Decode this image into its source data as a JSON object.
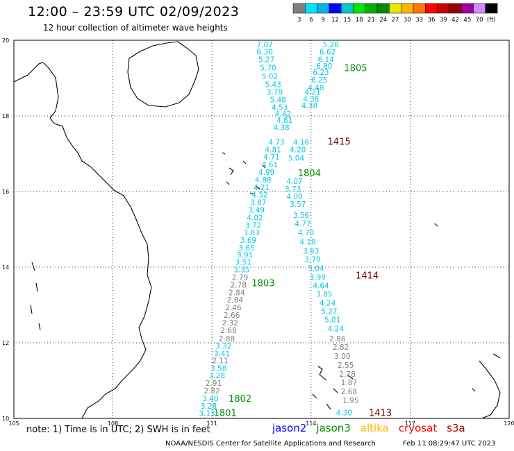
{
  "header": {
    "title": "12:00 – 23:59 UTC 02/09/2023",
    "subtitle": "12 hour collection of altimeter wave heights"
  },
  "colorbar": {
    "labels": [
      "3",
      "6",
      "9",
      "12",
      "15",
      "18",
      "21",
      "24",
      "27",
      "30",
      "33",
      "36",
      "39",
      "42",
      "45",
      "70",
      "(ft)"
    ],
    "colors": [
      "#7f7f7f",
      "#00e5ff",
      "#00b4e6",
      "#0000ff",
      "#00c8c8",
      "#00e600",
      "#00b000",
      "#008c00",
      "#e6e600",
      "#ffb400",
      "#ff7800",
      "#ff0000",
      "#c80000",
      "#960000",
      "#a000a0",
      "#d28cff",
      "#000000"
    ]
  },
  "map": {
    "lon_min": 105,
    "lon_max": 120,
    "lat_min": 10,
    "lat_max": 20,
    "lon_ticks": [
      "105",
      "108",
      "111",
      "114",
      "117",
      "120"
    ],
    "lat_ticks": [
      "20",
      "18",
      "16",
      "14",
      "12",
      "10"
    ]
  },
  "wave_labels": [
    {
      "v": "7.07",
      "lon": 112.6,
      "lat": 19.82,
      "c": "cyan"
    },
    {
      "v": "5.28",
      "lon": 114.6,
      "lat": 19.82,
      "c": "cyan"
    },
    {
      "v": "6.30",
      "lon": 112.6,
      "lat": 19.62,
      "c": "cyan"
    },
    {
      "v": "6.62",
      "lon": 114.5,
      "lat": 19.62,
      "c": "cyan"
    },
    {
      "v": "5.27",
      "lon": 112.65,
      "lat": 19.42,
      "c": "cyan"
    },
    {
      "v": "6.14",
      "lon": 114.45,
      "lat": 19.42,
      "c": "cyan"
    },
    {
      "v": "5.70",
      "lon": 112.7,
      "lat": 19.2,
      "c": "cyan"
    },
    {
      "v": "6.80",
      "lon": 114.4,
      "lat": 19.25,
      "c": "cyan"
    },
    {
      "v": "6.23",
      "lon": 114.3,
      "lat": 19.08,
      "c": "cyan"
    },
    {
      "v": "5.02",
      "lon": 112.75,
      "lat": 18.98,
      "c": "cyan"
    },
    {
      "v": "6.25",
      "lon": 114.25,
      "lat": 18.88,
      "c": "cyan"
    },
    {
      "v": "5.43",
      "lon": 112.85,
      "lat": 18.76,
      "c": "cyan"
    },
    {
      "v": "4.48",
      "lon": 114.15,
      "lat": 18.68,
      "c": "cyan"
    },
    {
      "v": "3.78",
      "lon": 112.9,
      "lat": 18.56,
      "c": "cyan"
    },
    {
      "v": "4.21",
      "lon": 114.05,
      "lat": 18.56,
      "c": "cyan"
    },
    {
      "v": "5.48",
      "lon": 113.0,
      "lat": 18.36,
      "c": "cyan"
    },
    {
      "v": "4.38",
      "lon": 114.0,
      "lat": 18.38,
      "c": "cyan"
    },
    {
      "v": "4.53",
      "lon": 113.05,
      "lat": 18.16,
      "c": "cyan"
    },
    {
      "v": "4.38",
      "lon": 113.95,
      "lat": 18.2,
      "c": "cyan"
    },
    {
      "v": "4.42",
      "lon": 113.15,
      "lat": 17.98,
      "c": "cyan"
    },
    {
      "v": "4.81",
      "lon": 113.2,
      "lat": 17.82,
      "c": "cyan"
    },
    {
      "v": "4.38",
      "lon": 113.1,
      "lat": 17.62,
      "c": "cyan"
    },
    {
      "v": "4.73",
      "lon": 112.95,
      "lat": 17.24,
      "c": "cyan"
    },
    {
      "v": "4.16",
      "lon": 113.7,
      "lat": 17.24,
      "c": "cyan"
    },
    {
      "v": "4.81",
      "lon": 112.85,
      "lat": 17.04,
      "c": "cyan"
    },
    {
      "v": "4.20",
      "lon": 113.6,
      "lat": 17.04,
      "c": "cyan"
    },
    {
      "v": "4.71",
      "lon": 112.8,
      "lat": 16.84,
      "c": "cyan"
    },
    {
      "v": "5.04",
      "lon": 113.55,
      "lat": 16.82,
      "c": "cyan"
    },
    {
      "v": "4.61",
      "lon": 112.75,
      "lat": 16.64,
      "c": "cyan"
    },
    {
      "v": "4.99",
      "lon": 112.65,
      "lat": 16.44,
      "c": "cyan"
    },
    {
      "v": "4.07",
      "lon": 113.5,
      "lat": 16.2,
      "c": "cyan"
    },
    {
      "v": "4.88",
      "lon": 112.55,
      "lat": 16.24,
      "c": "cyan"
    },
    {
      "v": "4.21",
      "lon": 112.5,
      "lat": 16.04,
      "c": "cyan"
    },
    {
      "v": "3.73",
      "lon": 113.45,
      "lat": 16.0,
      "c": "cyan"
    },
    {
      "v": "4.52",
      "lon": 112.45,
      "lat": 15.84,
      "c": "cyan"
    },
    {
      "v": "4.00",
      "lon": 113.5,
      "lat": 15.8,
      "c": "cyan"
    },
    {
      "v": "3.87",
      "lon": 112.4,
      "lat": 15.64,
      "c": "cyan"
    },
    {
      "v": "3.57",
      "lon": 113.6,
      "lat": 15.6,
      "c": "cyan"
    },
    {
      "v": "3.49",
      "lon": 112.35,
      "lat": 15.44,
      "c": "cyan"
    },
    {
      "v": "4.02",
      "lon": 112.3,
      "lat": 15.24,
      "c": "cyan"
    },
    {
      "v": "3.56",
      "lon": 113.7,
      "lat": 15.3,
      "c": "cyan"
    },
    {
      "v": "3.72",
      "lon": 112.25,
      "lat": 15.04,
      "c": "cyan"
    },
    {
      "v": "4.77",
      "lon": 113.75,
      "lat": 15.08,
      "c": "cyan"
    },
    {
      "v": "3.83",
      "lon": 112.2,
      "lat": 14.84,
      "c": "cyan"
    },
    {
      "v": "4.70",
      "lon": 113.85,
      "lat": 14.84,
      "c": "cyan"
    },
    {
      "v": "3.69",
      "lon": 112.1,
      "lat": 14.64,
      "c": "cyan"
    },
    {
      "v": "4.18",
      "lon": 113.9,
      "lat": 14.6,
      "c": "cyan"
    },
    {
      "v": "3.65",
      "lon": 112.05,
      "lat": 14.44,
      "c": "cyan"
    },
    {
      "v": "3.63",
      "lon": 114.0,
      "lat": 14.36,
      "c": "cyan"
    },
    {
      "v": "3.91",
      "lon": 112.0,
      "lat": 14.26,
      "c": "cyan"
    },
    {
      "v": "3.70",
      "lon": 114.05,
      "lat": 14.14,
      "c": "cyan"
    },
    {
      "v": "3.51",
      "lon": 111.95,
      "lat": 14.06,
      "c": "cyan"
    },
    {
      "v": "5.04",
      "lon": 114.15,
      "lat": 13.9,
      "c": "cyan"
    },
    {
      "v": "3.35",
      "lon": 111.9,
      "lat": 13.86,
      "c": "cyan"
    },
    {
      "v": "2.79",
      "lon": 111.85,
      "lat": 13.66,
      "c": "gray"
    },
    {
      "v": "3.99",
      "lon": 114.2,
      "lat": 13.66,
      "c": "cyan"
    },
    {
      "v": "2.78",
      "lon": 111.8,
      "lat": 13.46,
      "c": "gray"
    },
    {
      "v": "4.64",
      "lon": 114.3,
      "lat": 13.44,
      "c": "cyan"
    },
    {
      "v": "2.84",
      "lon": 111.75,
      "lat": 13.26,
      "c": "gray"
    },
    {
      "v": "3.85",
      "lon": 114.4,
      "lat": 13.22,
      "c": "cyan"
    },
    {
      "v": "2.84",
      "lon": 111.7,
      "lat": 13.06,
      "c": "gray"
    },
    {
      "v": "4.24",
      "lon": 114.5,
      "lat": 12.98,
      "c": "cyan"
    },
    {
      "v": "2.46",
      "lon": 111.65,
      "lat": 12.86,
      "c": "gray"
    },
    {
      "v": "5.27",
      "lon": 114.55,
      "lat": 12.76,
      "c": "cyan"
    },
    {
      "v": "2.66",
      "lon": 111.6,
      "lat": 12.66,
      "c": "gray"
    },
    {
      "v": "5.01",
      "lon": 114.65,
      "lat": 12.54,
      "c": "cyan"
    },
    {
      "v": "2.32",
      "lon": 111.55,
      "lat": 12.46,
      "c": "gray"
    },
    {
      "v": "4.24",
      "lon": 114.75,
      "lat": 12.3,
      "c": "cyan"
    },
    {
      "v": "2.68",
      "lon": 111.5,
      "lat": 12.26,
      "c": "gray"
    },
    {
      "v": "2.88",
      "lon": 111.45,
      "lat": 12.04,
      "c": "gray"
    },
    {
      "v": "2.86",
      "lon": 114.8,
      "lat": 12.04,
      "c": "gray"
    },
    {
      "v": "3.32",
      "lon": 111.35,
      "lat": 11.84,
      "c": "cyan"
    },
    {
      "v": "2.82",
      "lon": 114.9,
      "lat": 11.82,
      "c": "gray"
    },
    {
      "v": "3.41",
      "lon": 111.3,
      "lat": 11.64,
      "c": "cyan"
    },
    {
      "v": "3.00",
      "lon": 114.95,
      "lat": 11.58,
      "c": "gray"
    },
    {
      "v": "2.11",
      "lon": 111.25,
      "lat": 11.46,
      "c": "gray"
    },
    {
      "v": "2.55",
      "lon": 115.05,
      "lat": 11.34,
      "c": "gray"
    },
    {
      "v": "3.58",
      "lon": 111.2,
      "lat": 11.26,
      "c": "cyan"
    },
    {
      "v": "2.78",
      "lon": 115.1,
      "lat": 11.1,
      "c": "gray"
    },
    {
      "v": "3.28",
      "lon": 111.15,
      "lat": 11.06,
      "c": "cyan"
    },
    {
      "v": "2.91",
      "lon": 111.05,
      "lat": 10.86,
      "c": "gray"
    },
    {
      "v": "1.87",
      "lon": 115.15,
      "lat": 10.88,
      "c": "gray"
    },
    {
      "v": "2.82",
      "lon": 111.0,
      "lat": 10.66,
      "c": "gray"
    },
    {
      "v": "2.68",
      "lon": 115.15,
      "lat": 10.64,
      "c": "gray"
    },
    {
      "v": "3.40",
      "lon": 110.95,
      "lat": 10.46,
      "c": "cyan"
    },
    {
      "v": "1.95",
      "lon": 115.2,
      "lat": 10.4,
      "c": "gray"
    },
    {
      "v": "3.28",
      "lon": 110.9,
      "lat": 10.26,
      "c": "cyan"
    },
    {
      "v": "3.13",
      "lon": 110.85,
      "lat": 10.06,
      "c": "cyan"
    },
    {
      "v": "4.30",
      "lon": 115.0,
      "lat": 10.08,
      "c": "cyan"
    }
  ],
  "pass_labels": [
    {
      "v": "1805",
      "lon": 115.35,
      "lat": 19.18,
      "c": "green"
    },
    {
      "v": "1415",
      "lon": 114.85,
      "lat": 17.24,
      "c": "darkred"
    },
    {
      "v": "1804",
      "lon": 113.95,
      "lat": 16.4,
      "c": "green"
    },
    {
      "v": "1414",
      "lon": 115.7,
      "lat": 13.7,
      "c": "darkred"
    },
    {
      "v": "1803",
      "lon": 112.55,
      "lat": 13.5,
      "c": "green"
    },
    {
      "v": "1802",
      "lon": 111.85,
      "lat": 10.44,
      "c": "green"
    },
    {
      "v": "1413",
      "lon": 116.1,
      "lat": 10.06,
      "c": "darkred"
    },
    {
      "v": "1801",
      "lon": 111.4,
      "lat": 10.06,
      "c": "green"
    }
  ],
  "label_colors": {
    "cyan": "#00c8e6",
    "gray": "#7f7f7f",
    "green": "#008c00",
    "darkred": "#780000"
  },
  "footer": {
    "note": "note: 1) Time is in UTC; 2) SWH is in feet",
    "sat_jason2": "jason2",
    "sat_jason3": "jason3",
    "sat_altika": "altika",
    "sat_cryosat": "cryosat",
    "sat_s3a": "s3a",
    "sat_colors": {
      "jason2": "#0000ff",
      "jason3": "#008c00",
      "altika": "#ffb400",
      "cryosat": "#ff0000",
      "s3a": "#a00000"
    },
    "credit": "NOAA/NESDIS Center for Satellite Applications and Research",
    "timestamp": "Feb 11 08:29:47 UTC 2023"
  }
}
